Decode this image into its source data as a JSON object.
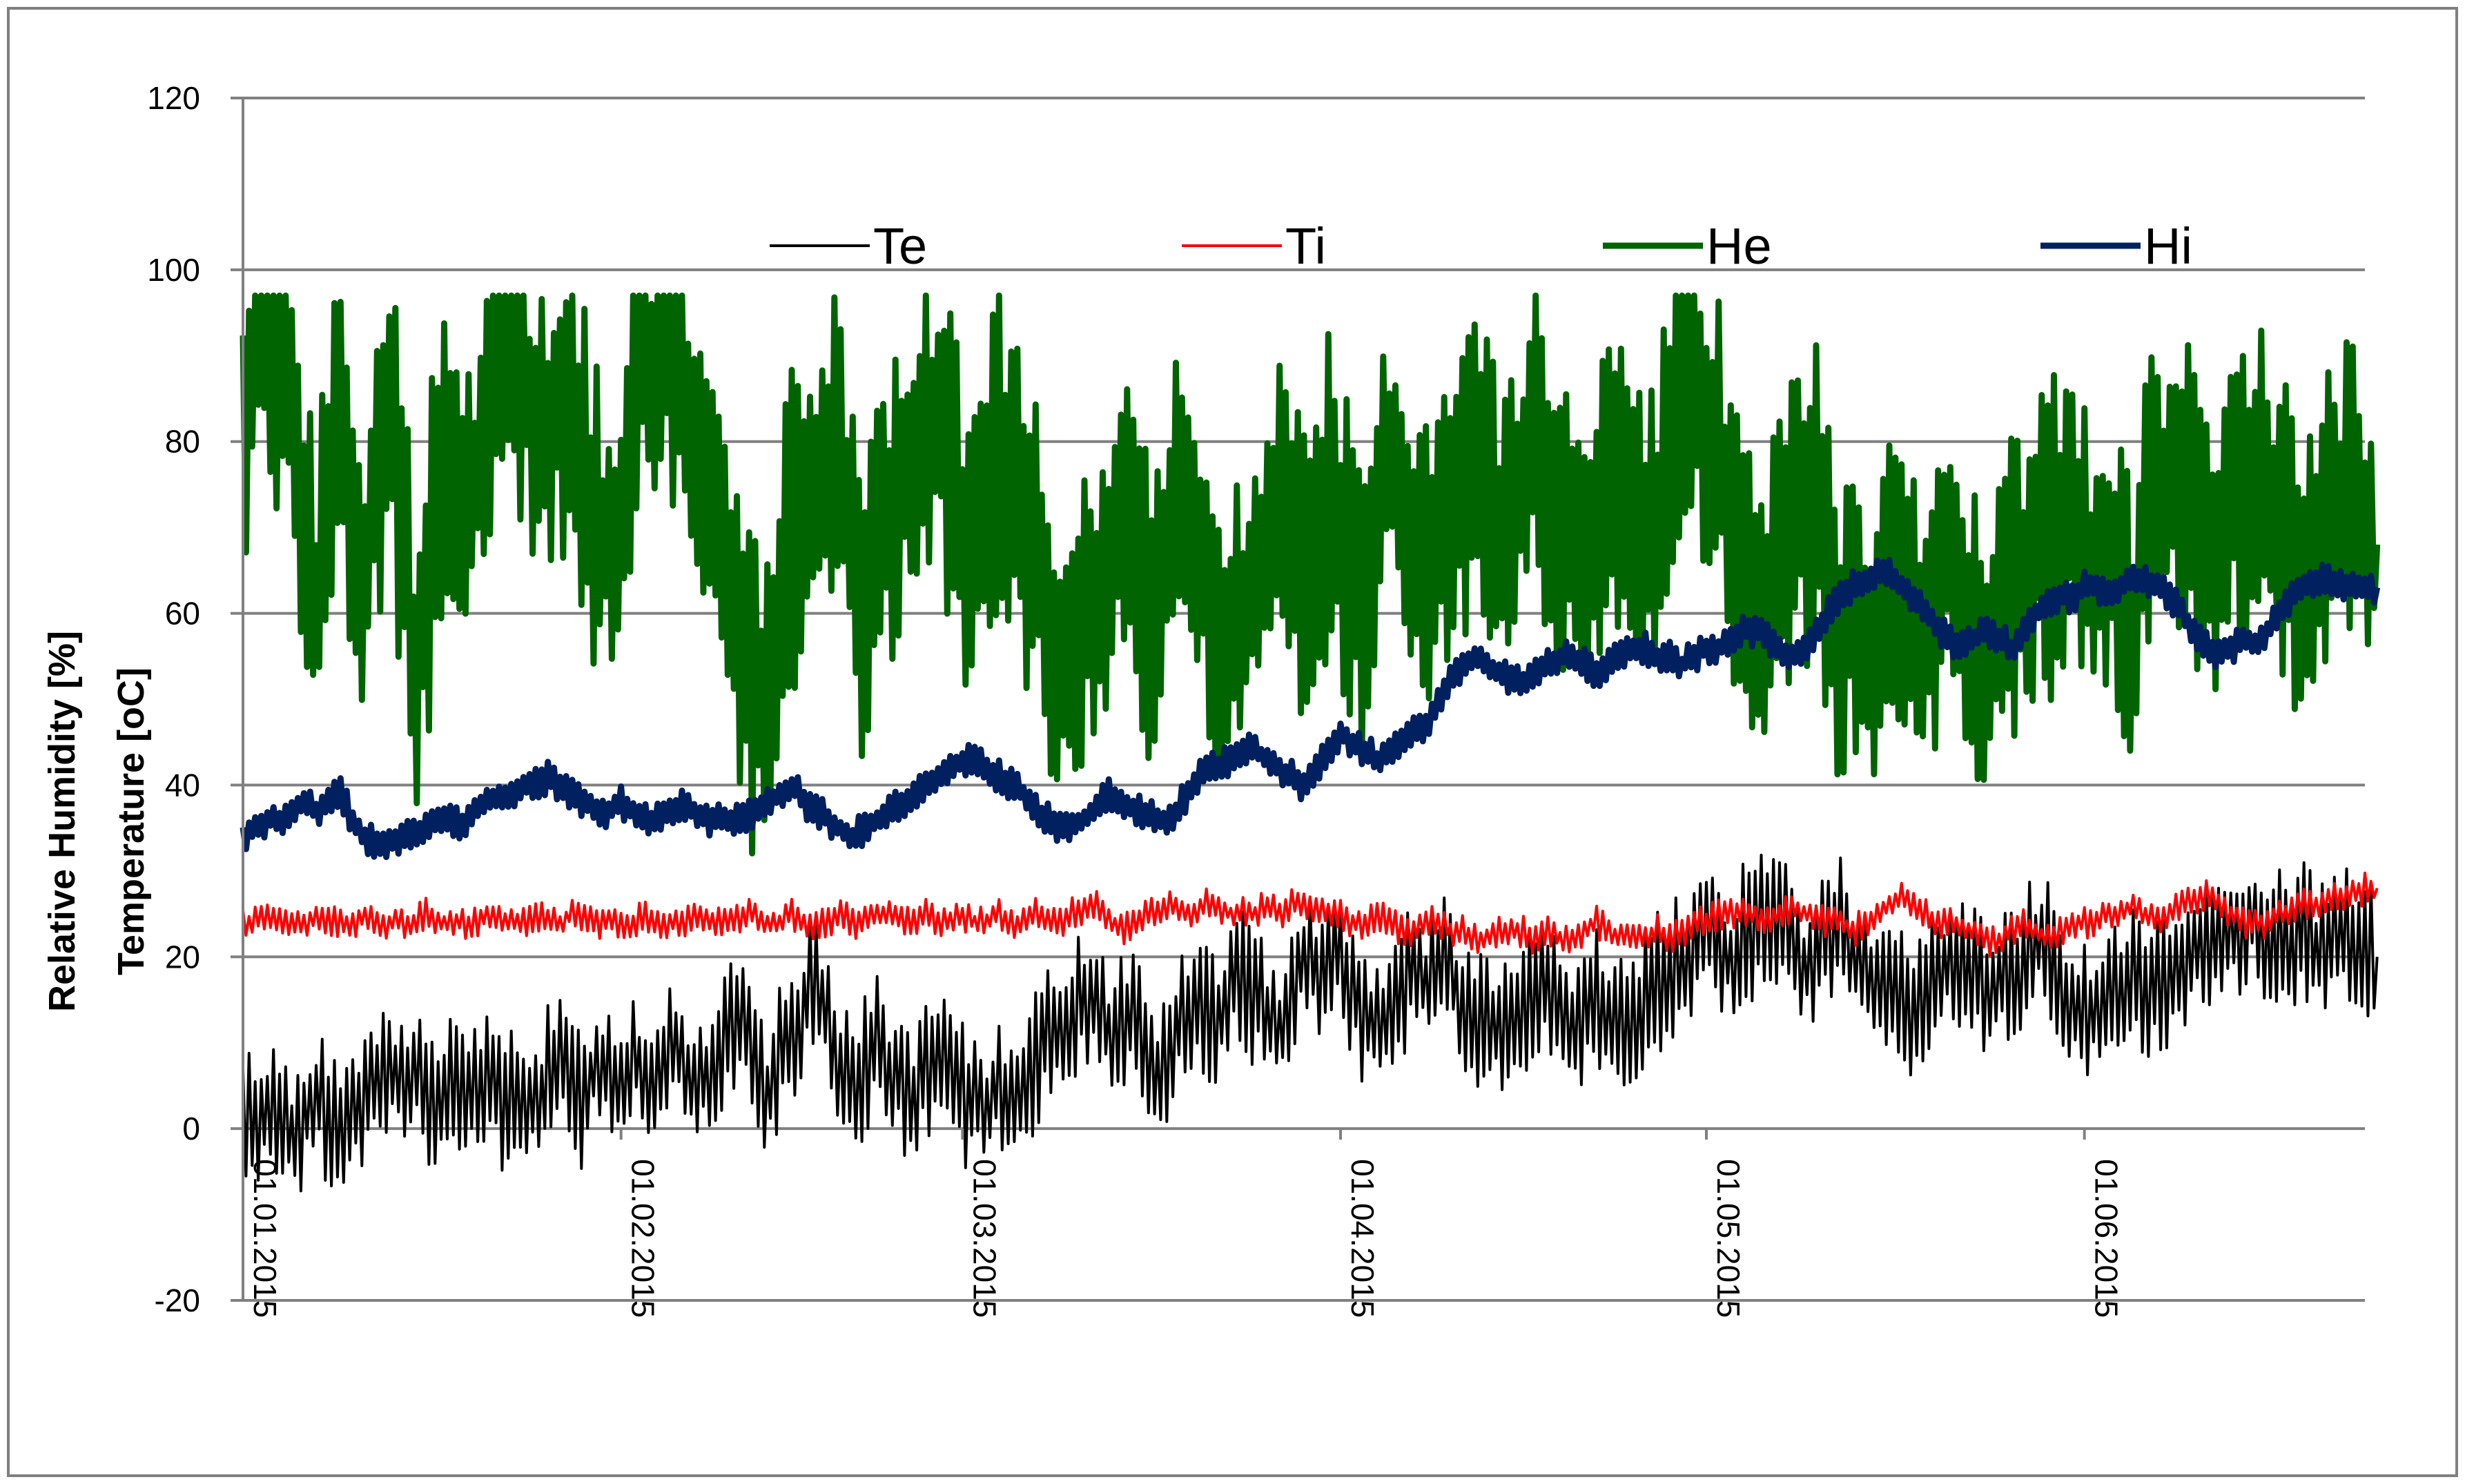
{
  "chart_data": {
    "type": "line",
    "title": "",
    "ylabel_lines": [
      "Relative Humidity [%]",
      "Temperature [oC]"
    ],
    "xlabel": "",
    "ylim": [
      -20,
      120
    ],
    "yticks": [
      "-20",
      "0",
      "20",
      "40",
      "60",
      "80",
      "100",
      "120"
    ],
    "xlim": [
      "2015-01-01",
      "2015-06-24"
    ],
    "xticks": [
      "01.01.2015",
      "01.02.2015",
      "01.03.2015",
      "01.04.2015",
      "01.05.2015",
      "01.06.2015"
    ],
    "grid": "horizontal",
    "legend_position": "top",
    "sampling": "daily mean with min/max",
    "series": [
      {
        "name": "Te",
        "color": "#000000",
        "x_start": "2015-01-01",
        "values": [
          0,
          2,
          1,
          3,
          -2,
          2,
          4,
          1,
          -1,
          3,
          2,
          5,
          6,
          5,
          7,
          4,
          3,
          5,
          4,
          6,
          5,
          3,
          4,
          5,
          2,
          6,
          7,
          5,
          3,
          8,
          6,
          4,
          9,
          5,
          7,
          10,
          8,
          4,
          6,
          9,
          11,
          12,
          6,
          3,
          8,
          10,
          15,
          17,
          13,
          8,
          5,
          7,
          10,
          7,
          5,
          3,
          6,
          8,
          6,
          4,
          3,
          2,
          5,
          4,
          6,
          8,
          10,
          12,
          14,
          15,
          16,
          11,
          13,
          14,
          9,
          6,
          10,
          12,
          15,
          14,
          13,
          16,
          18,
          15,
          13,
          12,
          17,
          20,
          19,
          18,
          21,
          16,
          13,
          12,
          14,
          16,
          18,
          17,
          19,
          18,
          15,
          13,
          12,
          11,
          13,
          14,
          15,
          17,
          12,
          11,
          14,
          16,
          13,
          12,
          14,
          15,
          17,
          18,
          19,
          22,
          24,
          21,
          20,
          23,
          22,
          25,
          24,
          21,
          19,
          20,
          22,
          24,
          21,
          19,
          17,
          16,
          15,
          14,
          16,
          18,
          20,
          19,
          18,
          17,
          16,
          18,
          20,
          22,
          21,
          17,
          15,
          14,
          13,
          15,
          16,
          18,
          17,
          16,
          18,
          19,
          20,
          23,
          21,
          22,
          24,
          25,
          20,
          23,
          22,
          24,
          20,
          21,
          22,
          23,
          21,
          20
        ]
      },
      {
        "name": "Ti",
        "color": "#ff0000",
        "x_start": "2015-01-01",
        "values": [
          24,
          24,
          25,
          24,
          24,
          24,
          25,
          24,
          24,
          24,
          25,
          24,
          24,
          24,
          24,
          25,
          24,
          24,
          24,
          24,
          25,
          24,
          24,
          24,
          25,
          24,
          24,
          25,
          25,
          24,
          24,
          24,
          24,
          25,
          24,
          24,
          24,
          25,
          24,
          24,
          24,
          25,
          25,
          24,
          24,
          25,
          24,
          24,
          24,
          25,
          24,
          24,
          25,
          25,
          24,
          24,
          25,
          24,
          24,
          25,
          24,
          24,
          25,
          24,
          24,
          25,
          24,
          24,
          25,
          25,
          26,
          24,
          23,
          24,
          25,
          25,
          26,
          25,
          25,
          26,
          26,
          25,
          25,
          25,
          26,
          25,
          26,
          26,
          25,
          25,
          25,
          24,
          24,
          25,
          24,
          23,
          23,
          24,
          24,
          23,
          23,
          22,
          22,
          23,
          23,
          23,
          22,
          23,
          22,
          22,
          23,
          24,
          23,
          22,
          23,
          22,
          23,
          22,
          23,
          24,
          24,
          25,
          25,
          25,
          25,
          24,
          25,
          26,
          25,
          25,
          24,
          24,
          23,
          24,
          25,
          26,
          27,
          26,
          25,
          24,
          24,
          23,
          23,
          22,
          22,
          23,
          24,
          23,
          22,
          23,
          24,
          24,
          24,
          25,
          25,
          26,
          25,
          24,
          25,
          26,
          27,
          27,
          26,
          25,
          24,
          24,
          24,
          25,
          25,
          26,
          26,
          27,
          27,
          27,
          28,
          28
        ]
      },
      {
        "name": "He",
        "color": "#006400",
        "x_start": "2015-01-01",
        "values": [
          80,
          92,
          95,
          88,
          85,
          70,
          60,
          75,
          80,
          72,
          65,
          78,
          83,
          70,
          55,
          62,
          75,
          80,
          68,
          74,
          85,
          90,
          92,
          88,
          82,
          80,
          86,
          84,
          78,
          70,
          68,
          72,
          88,
          90,
          86,
          92,
          88,
          80,
          78,
          72,
          60,
          55,
          50,
          48,
          62,
          70,
          72,
          75,
          80,
          82,
          65,
          55,
          68,
          70,
          78,
          80,
          84,
          82,
          76,
          70,
          72,
          75,
          80,
          74,
          70,
          66,
          60,
          54,
          50,
          62,
          58,
          65,
          74,
          70,
          62,
          58,
          70,
          75,
          68,
          66,
          60,
          56,
          58,
          64,
          70,
          72,
          68,
          62,
          66,
          74,
          70,
          65,
          60,
          72,
          78,
          74,
          68,
          64,
          72,
          70,
          75,
          80,
          74,
          70,
          72,
          78,
          82,
          74,
          70,
          68,
          70,
          72,
          76,
          74,
          70,
          68,
          72,
          80,
          84,
          86,
          82,
          78,
          70,
          62,
          60,
          58,
          66,
          70,
          72,
          74,
          64,
          58,
          60,
          56,
          58,
          62,
          64,
          58,
          60,
          64,
          68,
          62,
          58,
          56,
          60,
          62,
          64,
          70,
          68,
          72,
          74,
          66,
          64,
          68,
          60,
          58,
          70,
          72,
          74,
          76,
          72,
          70,
          68,
          72,
          76,
          78,
          74,
          70,
          66,
          64,
          68,
          70,
          72,
          74,
          70,
          68
        ]
      },
      {
        "name": "Hi",
        "color": "#002060",
        "x_start": "2015-01-01",
        "values": [
          34,
          35,
          36,
          36,
          37,
          38,
          37,
          38,
          39,
          36,
          34,
          33,
          33,
          34,
          34,
          35,
          36,
          36,
          35,
          37,
          38,
          39,
          39,
          40,
          40,
          41,
          40,
          39,
          38,
          37,
          37,
          38,
          37,
          36,
          36,
          37,
          38,
          37,
          36,
          36,
          36,
          36,
          37,
          38,
          39,
          40,
          38,
          37,
          36,
          35,
          34,
          35,
          36,
          37,
          38,
          39,
          40,
          41,
          42,
          43,
          43,
          42,
          41,
          40,
          39,
          37,
          36,
          35,
          35,
          36,
          38,
          39,
          38,
          37,
          37,
          36,
          36,
          38,
          40,
          42,
          42,
          43,
          44,
          44,
          43,
          42,
          41,
          40,
          42,
          44,
          46,
          45,
          44,
          43,
          44,
          45,
          46,
          47,
          50,
          52,
          54,
          55,
          54,
          53,
          52,
          52,
          53,
          54,
          55,
          55,
          54,
          53,
          54,
          55,
          56,
          56,
          55,
          55,
          54,
          55,
          56,
          56,
          57,
          58,
          58,
          57,
          56,
          55,
          56,
          58,
          60,
          62,
          63,
          64,
          65,
          65,
          63,
          62,
          60,
          58,
          57,
          56,
          57,
          58,
          57,
          56,
          58,
          60,
          61,
          62,
          62,
          63,
          63,
          62,
          63,
          64,
          64,
          63,
          62,
          60,
          58,
          56,
          55,
          56,
          57,
          56,
          58,
          60,
          62,
          63,
          64,
          64,
          63,
          63,
          63,
          63
        ]
      }
    ]
  }
}
